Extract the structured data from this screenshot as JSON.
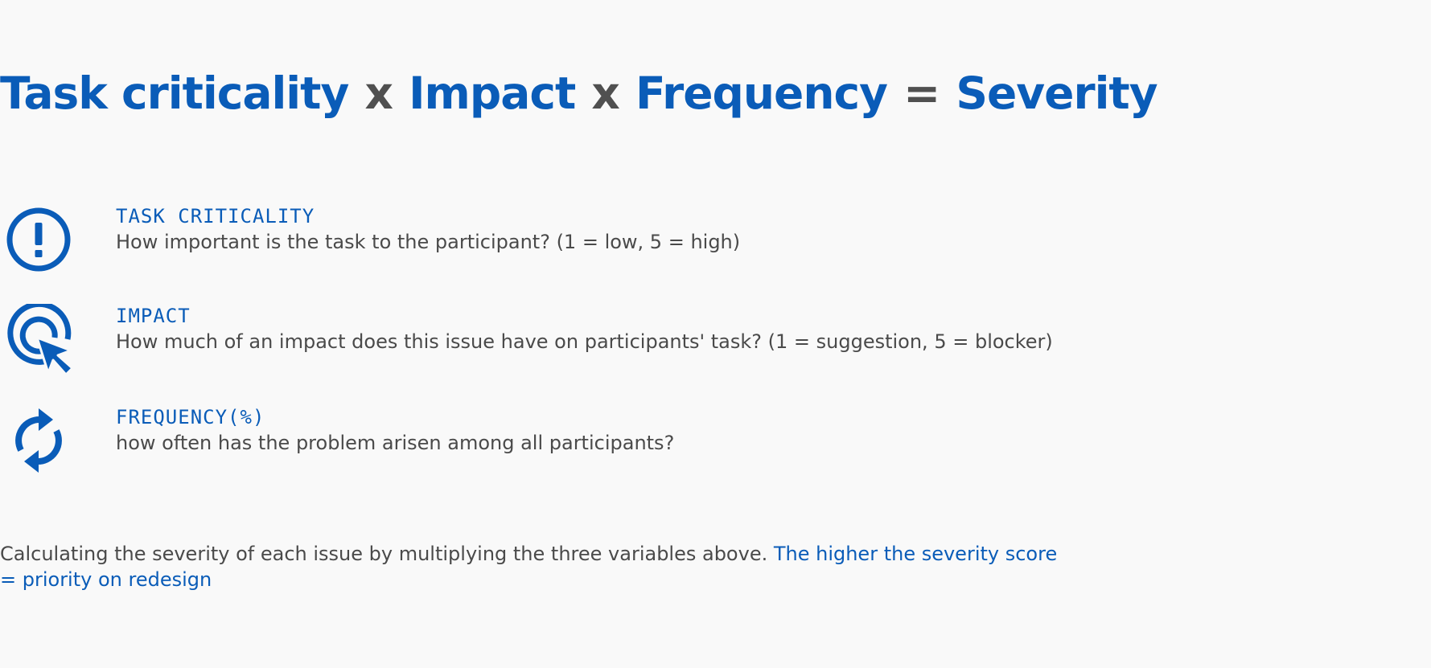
{
  "formula": {
    "term1": "Task criticality",
    "op1": "x",
    "term2": "Impact",
    "op2": "x",
    "term3": "Frequency",
    "op3": "=",
    "result": "Severity"
  },
  "factors": [
    {
      "icon": "exclamation-circle-icon",
      "label": "TASK CRITICALITY",
      "description": "How important is the task to the participant? (1 = low, 5 = high)"
    },
    {
      "icon": "cursor-click-target-icon",
      "label": "IMPACT",
      "description": "How much of an impact does this issue have on participants' task? (1 = suggestion, 5 = blocker)"
    },
    {
      "icon": "refresh-cycle-icon",
      "label": "FREQUENCY(%)",
      "description": "how often has the problem arisen among all participants?"
    }
  ],
  "footer": {
    "text": "Calculating the severity of each issue by multiplying the three variables above. ",
    "highlight": "The higher the severity score = priority on redesign"
  },
  "colors": {
    "accent": "#0a5cb8",
    "text": "#4a4a4a",
    "background": "#f9f9f9"
  }
}
